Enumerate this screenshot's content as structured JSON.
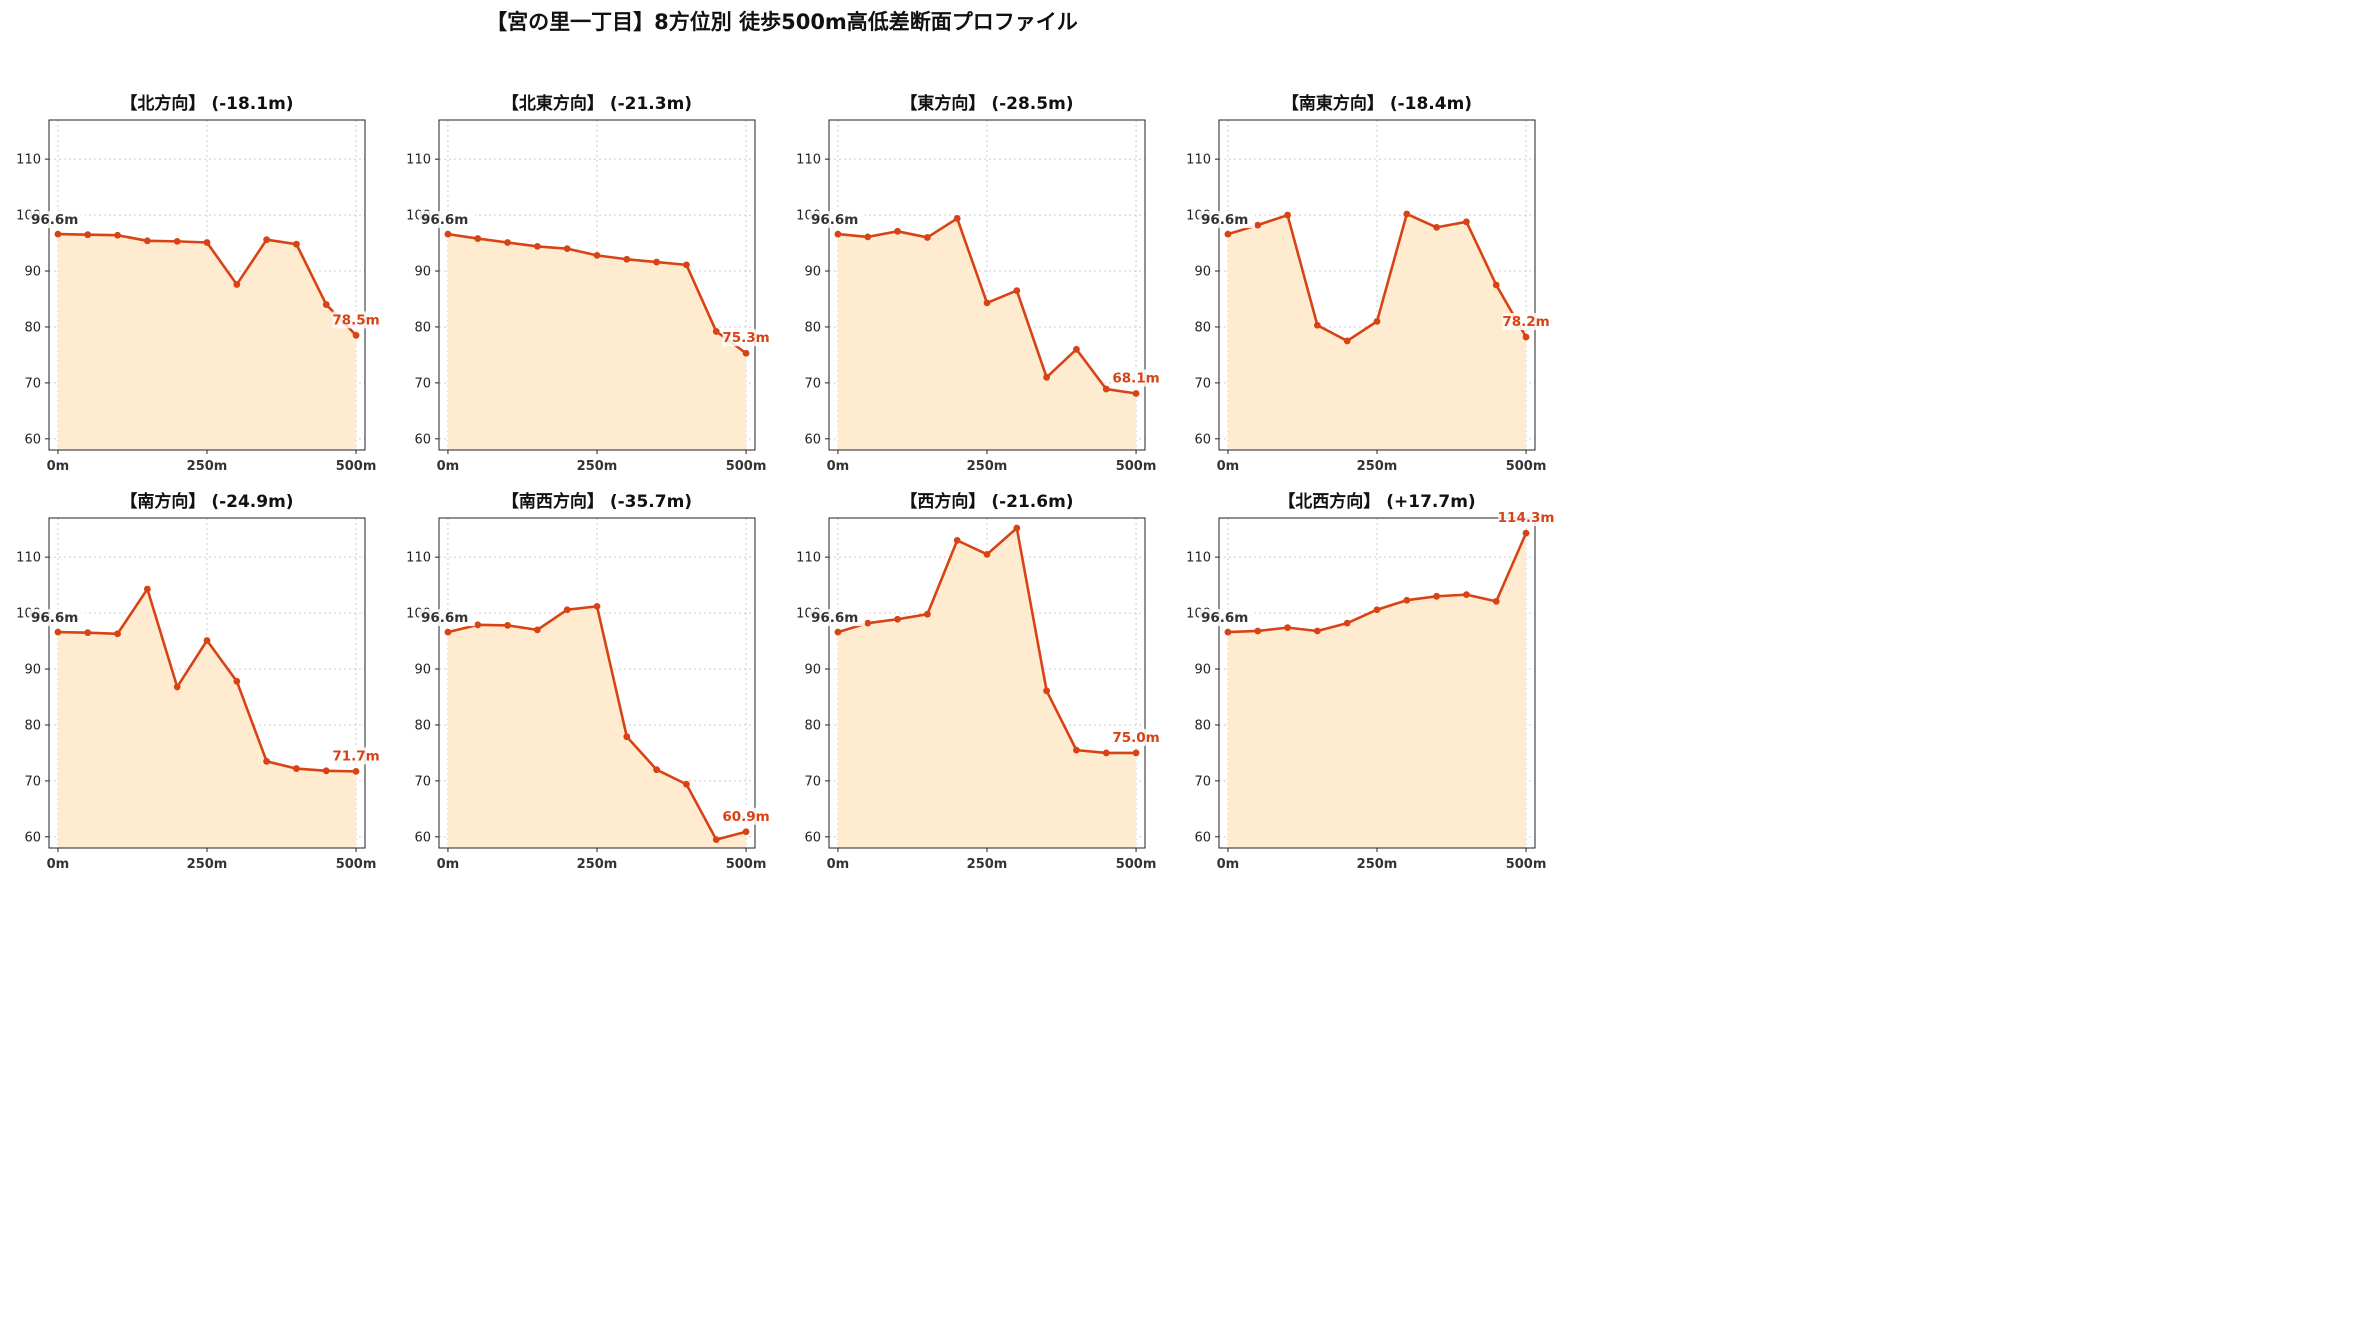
{
  "title": "【宮の里一丁目】8方位別 徒歩500m高低差断面プロファイル",
  "colors": {
    "line": "#d84315",
    "fill": "#ffecd0",
    "start_label": "#333333",
    "grid": "#cccccc"
  },
  "chart_data": [
    {
      "type": "area",
      "title": "【北方向】 (-18.1m)",
      "x": [
        0,
        50,
        100,
        150,
        200,
        250,
        300,
        350,
        400,
        450,
        500
      ],
      "values": [
        96.6,
        96.5,
        96.4,
        95.4,
        95.3,
        95.1,
        87.6,
        95.6,
        94.8,
        84.0,
        78.5
      ],
      "start_label": "96.6m",
      "end_label": "78.5m",
      "x_ticks": [
        "0m",
        "250m",
        "500m"
      ],
      "y_ticks": [
        "60",
        "70",
        "80",
        "90",
        "100",
        "110"
      ],
      "ylim": [
        58,
        117
      ],
      "xlim": [
        -15,
        515
      ],
      "grid": true
    },
    {
      "type": "area",
      "title": "【北東方向】 (-21.3m)",
      "x": [
        0,
        50,
        100,
        150,
        200,
        250,
        300,
        350,
        400,
        450,
        500
      ],
      "values": [
        96.6,
        95.8,
        95.1,
        94.4,
        94.0,
        92.8,
        92.1,
        91.6,
        91.1,
        79.2,
        75.3
      ],
      "start_label": "96.6m",
      "end_label": "75.3m",
      "x_ticks": [
        "0m",
        "250m",
        "500m"
      ],
      "y_ticks": [
        "60",
        "70",
        "80",
        "90",
        "100",
        "110"
      ],
      "ylim": [
        58,
        117
      ],
      "xlim": [
        -15,
        515
      ],
      "grid": true
    },
    {
      "type": "area",
      "title": "【東方向】 (-28.5m)",
      "x": [
        0,
        50,
        100,
        150,
        200,
        250,
        300,
        350,
        400,
        450,
        500
      ],
      "values": [
        96.6,
        96.1,
        97.1,
        96.0,
        99.4,
        84.3,
        86.5,
        71.0,
        76.0,
        68.9,
        68.1
      ],
      "start_label": "96.6m",
      "end_label": "68.1m",
      "x_ticks": [
        "0m",
        "250m",
        "500m"
      ],
      "y_ticks": [
        "60",
        "70",
        "80",
        "90",
        "100",
        "110"
      ],
      "ylim": [
        58,
        117
      ],
      "xlim": [
        -15,
        515
      ],
      "grid": true
    },
    {
      "type": "area",
      "title": "【南東方向】 (-18.4m)",
      "x": [
        0,
        50,
        100,
        150,
        200,
        250,
        300,
        350,
        400,
        450,
        500
      ],
      "values": [
        96.6,
        98.2,
        100.0,
        80.3,
        77.5,
        81.0,
        100.2,
        97.8,
        98.8,
        87.5,
        78.2
      ],
      "start_label": "96.6m",
      "end_label": "78.2m",
      "x_ticks": [
        "0m",
        "250m",
        "500m"
      ],
      "y_ticks": [
        "60",
        "70",
        "80",
        "90",
        "100",
        "110"
      ],
      "ylim": [
        58,
        117
      ],
      "xlim": [
        -15,
        515
      ],
      "grid": true
    },
    {
      "type": "area",
      "title": "【南方向】 (-24.9m)",
      "x": [
        0,
        50,
        100,
        150,
        200,
        250,
        300,
        350,
        400,
        450,
        500
      ],
      "values": [
        96.6,
        96.5,
        96.3,
        104.3,
        86.8,
        95.1,
        87.8,
        73.5,
        72.2,
        71.8,
        71.7
      ],
      "start_label": "96.6m",
      "end_label": "71.7m",
      "x_ticks": [
        "0m",
        "250m",
        "500m"
      ],
      "y_ticks": [
        "60",
        "70",
        "80",
        "90",
        "100",
        "110"
      ],
      "ylim": [
        58,
        117
      ],
      "xlim": [
        -15,
        515
      ],
      "grid": true
    },
    {
      "type": "area",
      "title": "【南西方向】 (-35.7m)",
      "x": [
        0,
        50,
        100,
        150,
        200,
        250,
        300,
        350,
        400,
        450,
        500
      ],
      "values": [
        96.6,
        97.9,
        97.8,
        97.0,
        100.6,
        101.2,
        77.9,
        72.0,
        69.4,
        59.5,
        60.9
      ],
      "start_label": "96.6m",
      "end_label": "60.9m",
      "x_ticks": [
        "0m",
        "250m",
        "500m"
      ],
      "y_ticks": [
        "60",
        "70",
        "80",
        "90",
        "100",
        "110"
      ],
      "ylim": [
        58,
        117
      ],
      "xlim": [
        -15,
        515
      ],
      "grid": true
    },
    {
      "type": "area",
      "title": "【西方向】 (-21.6m)",
      "x": [
        0,
        50,
        100,
        150,
        200,
        250,
        300,
        350,
        400,
        450,
        500
      ],
      "values": [
        96.6,
        98.2,
        98.9,
        99.8,
        113.0,
        110.5,
        115.2,
        86.1,
        75.5,
        75.0,
        75.0
      ],
      "start_label": "96.6m",
      "end_label": "75.0m",
      "x_ticks": [
        "0m",
        "250m",
        "500m"
      ],
      "y_ticks": [
        "60",
        "70",
        "80",
        "90",
        "100",
        "110"
      ],
      "ylim": [
        58,
        117
      ],
      "xlim": [
        -15,
        515
      ],
      "grid": true
    },
    {
      "type": "area",
      "title": "【北西方向】 (+17.7m)",
      "x": [
        0,
        50,
        100,
        150,
        200,
        250,
        300,
        350,
        400,
        450,
        500
      ],
      "values": [
        96.6,
        96.8,
        97.4,
        96.8,
        98.2,
        100.6,
        102.3,
        103.0,
        103.3,
        102.1,
        114.3
      ],
      "start_label": "96.6m",
      "end_label": "114.3m",
      "x_ticks": [
        "0m",
        "250m",
        "500m"
      ],
      "y_ticks": [
        "60",
        "70",
        "80",
        "90",
        "100",
        "110"
      ],
      "ylim": [
        58,
        117
      ],
      "xlim": [
        -15,
        515
      ],
      "grid": true
    }
  ]
}
